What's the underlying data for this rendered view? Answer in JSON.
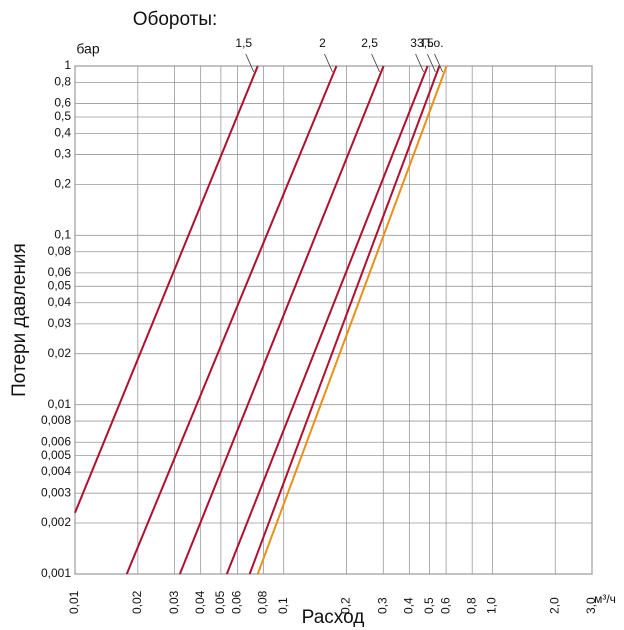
{
  "chart_data": {
    "type": "line",
    "title": "Обороты:",
    "y_label": "Потери давления",
    "x_label": "Расход",
    "y_unit": "бар",
    "x_unit": "м³/ч",
    "x_log": true,
    "y_log": true,
    "grid": true,
    "xlim": [
      0.01,
      3.0
    ],
    "ylim": [
      0.001,
      1
    ],
    "xticks": [
      {
        "value": 0.01,
        "label": "0,01"
      },
      {
        "value": 0.02,
        "label": "0,02"
      },
      {
        "value": 0.03,
        "label": "0,03"
      },
      {
        "value": 0.04,
        "label": "0,04"
      },
      {
        "value": 0.05,
        "label": "0,05"
      },
      {
        "value": 0.06,
        "label": "0,06"
      },
      {
        "value": 0.08,
        "label": "0,08"
      },
      {
        "value": 0.1,
        "label": "0,1"
      },
      {
        "value": 0.2,
        "label": "0,2"
      },
      {
        "value": 0.3,
        "label": "0,3"
      },
      {
        "value": 0.4,
        "label": "0,4"
      },
      {
        "value": 0.5,
        "label": "0,5"
      },
      {
        "value": 0.6,
        "label": "0,6"
      },
      {
        "value": 0.8,
        "label": "0,8"
      },
      {
        "value": 1.0,
        "label": "1,0"
      },
      {
        "value": 2.0,
        "label": "2,0"
      },
      {
        "value": 3.0,
        "label": "3,0"
      }
    ],
    "yticks": [
      1,
      {
        "value": 0.8,
        "label": "0,8"
      },
      {
        "value": 0.6,
        "label": "0,6"
      },
      {
        "value": 0.5,
        "label": "0,5"
      },
      {
        "value": 0.4,
        "label": "0,4"
      },
      {
        "value": 0.3,
        "label": "0,3"
      },
      {
        "value": 0.2,
        "label": "0,2"
      },
      {
        "value": 0.1,
        "label": "0,1"
      },
      {
        "value": 0.08,
        "label": "0,08"
      },
      {
        "value": 0.06,
        "label": "0,06"
      },
      {
        "value": 0.05,
        "label": "0,05"
      },
      {
        "value": 0.04,
        "label": "0,04"
      },
      {
        "value": 0.03,
        "label": "0,03"
      },
      {
        "value": 0.02,
        "label": "0,02"
      },
      {
        "value": 0.01,
        "label": "0,01"
      },
      {
        "value": 0.008,
        "label": "0,008"
      },
      {
        "value": 0.006,
        "label": "0,006"
      },
      {
        "value": 0.005,
        "label": "0,005"
      },
      {
        "value": 0.004,
        "label": "0,004"
      },
      {
        "value": 0.003,
        "label": "0,003"
      },
      {
        "value": 0.002,
        "label": "0,002"
      },
      {
        "value": 0.001,
        "label": "0,001"
      }
    ],
    "series": [
      {
        "name": "1,5",
        "color": "#b01030",
        "x": [
          0.01,
          0.0751
        ],
        "values": [
          0.0023,
          1
        ]
      },
      {
        "name": "2",
        "color": "#b01030",
        "x": [
          0.0177,
          0.179
        ],
        "values": [
          0.001,
          1
        ]
      },
      {
        "name": "2,5",
        "color": "#b01030",
        "x": [
          0.0318,
          0.301
        ],
        "values": [
          0.001,
          1
        ]
      },
      {
        "name": "3",
        "color": "#b01030",
        "x": [
          0.0534,
          0.489
        ],
        "values": [
          0.001,
          1
        ]
      },
      {
        "name": "3,5",
        "color": "#b01030",
        "x": [
          0.0687,
          0.557
        ],
        "values": [
          0.001,
          1
        ]
      },
      {
        "name": "П.о.",
        "color": "#e8901a",
        "x": [
          0.0751,
          0.603
        ],
        "values": [
          0.001,
          1
        ]
      }
    ]
  }
}
